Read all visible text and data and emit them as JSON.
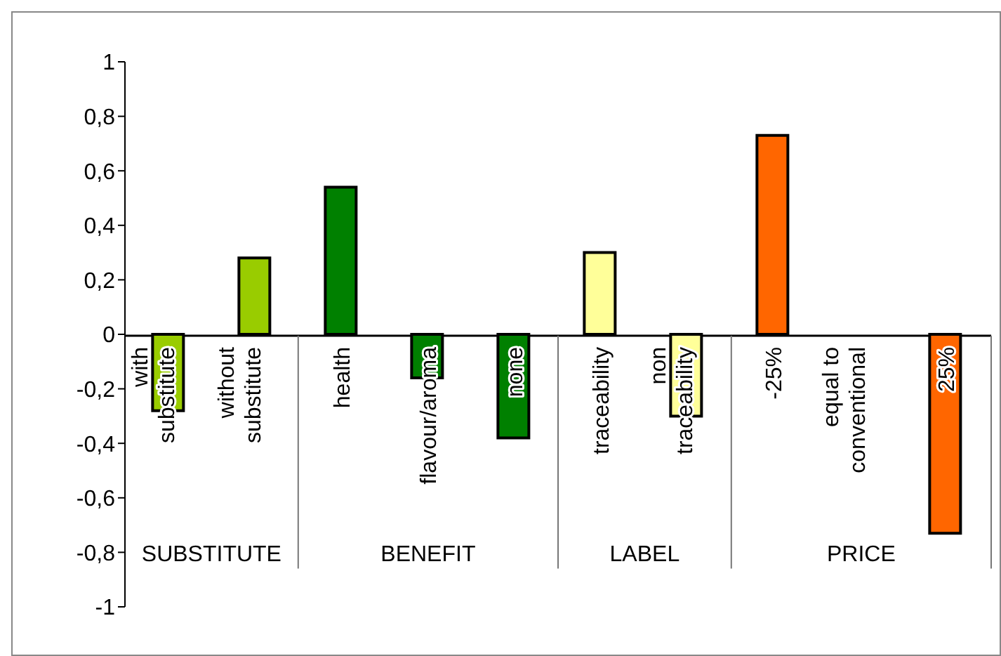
{
  "chart_data": {
    "type": "bar",
    "categories": [
      "with substitute",
      "without substitute",
      "health",
      "flavour/aroma",
      "none",
      "traceability",
      "non traceability",
      "-25%",
      "equal to conventional",
      "25%"
    ],
    "values": [
      -0.28,
      0.28,
      0.54,
      -0.16,
      -0.38,
      0.3,
      -0.3,
      0.73,
      0,
      -0.73
    ],
    "colors": [
      "#99cc00",
      "#99cc00",
      "#008000",
      "#008000",
      "#008000",
      "#ffff99",
      "#ffff99",
      "#ff6600",
      "#ff6600",
      "#ff6600"
    ],
    "annotations": [
      "SUBSTITUTE",
      "BENEFIT",
      "LABEL",
      "PRICE"
    ],
    "ylim": [
      -1,
      1
    ],
    "yticks": [
      -1,
      {
        "value": -0.8,
        "label": "-0,8"
      },
      {
        "value": -0.6,
        "label": "-0,6"
      },
      {
        "value": -0.4,
        "label": "-0,4"
      },
      {
        "value": -0.2,
        "label": "-0,2"
      },
      0,
      {
        "value": 0.2,
        "label": "0,2"
      },
      {
        "value": 0.4,
        "label": "0,4"
      },
      {
        "value": 0.6,
        "label": "0,6"
      },
      {
        "value": 0.8,
        "label": "0,8"
      },
      1
    ],
    "grid": false,
    "legend": false
  }
}
